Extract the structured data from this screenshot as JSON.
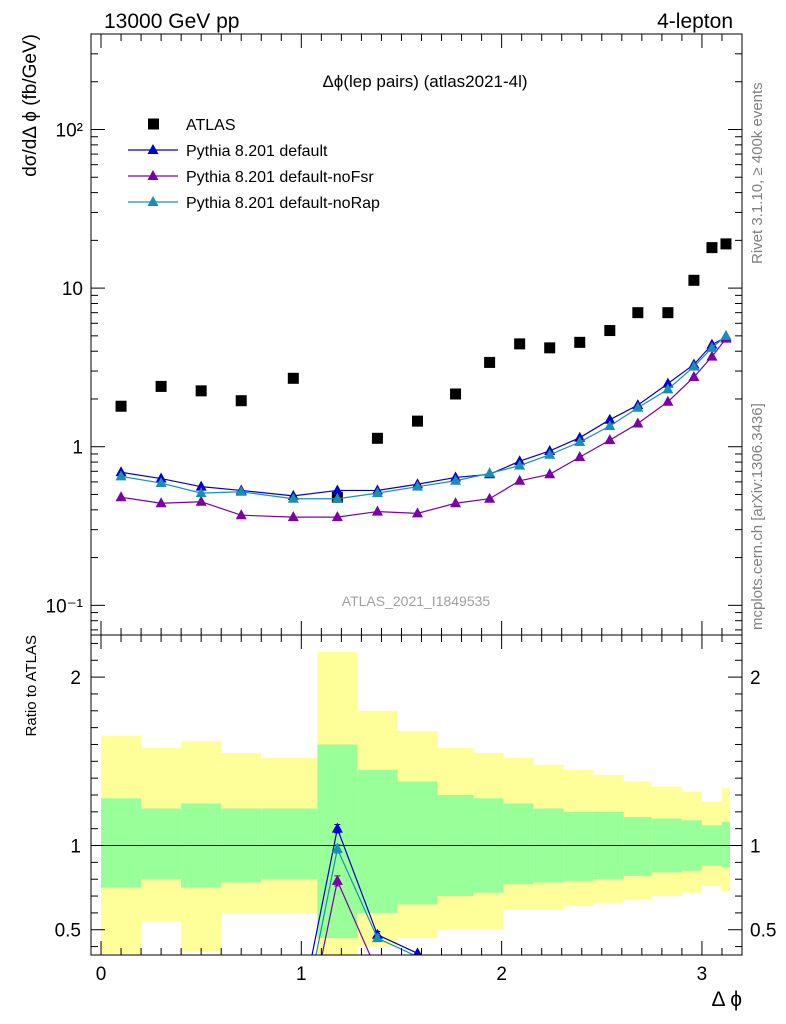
{
  "header": {
    "left": "13000 GeV pp",
    "right": "4-lepton"
  },
  "side_labels": {
    "top": "Rivet 3.1.10, ≥ 400k events",
    "bottom": "mcplots.cern.ch [arXiv:1306.3436]"
  },
  "chart_data": [
    {
      "type": "scatter",
      "title": "Δϕ(lep pairs) (atlas2021-4l)",
      "ylabel": "dσ/dΔ ϕ (fb/GeV)",
      "yscale": "log",
      "xlim": [
        -0.05,
        3.2
      ],
      "ylim": [
        0.065,
        400
      ],
      "watermark": "ATLAS_2021_I1849535",
      "y_ticks": [
        {
          "value": 0.1,
          "label": "10⁻¹"
        },
        {
          "value": 1,
          "label": "1"
        },
        {
          "value": 10,
          "label": "10"
        },
        {
          "value": 100,
          "label": "10²"
        }
      ],
      "legend_position": "top-left",
      "series": [
        {
          "name": "ATLAS",
          "color": "#000000",
          "marker": "square",
          "x": [
            0.1,
            0.3,
            0.5,
            0.7,
            0.96,
            1.18,
            1.38,
            1.58,
            1.77,
            1.94,
            2.09,
            2.24,
            2.39,
            2.54,
            2.68,
            2.83,
            2.96,
            3.05,
            3.12
          ],
          "y": [
            1.8,
            2.4,
            2.25,
            1.95,
            2.7,
            0.48,
            1.13,
            1.45,
            2.15,
            3.4,
            4.45,
            4.2,
            4.55,
            5.4,
            7.0,
            7.0,
            11.2,
            18.0,
            19.0
          ]
        },
        {
          "name": "Pythia 8.201 default",
          "color": "#0000cc",
          "marker": "triangle",
          "x": [
            0.1,
            0.3,
            0.5,
            0.7,
            0.96,
            1.18,
            1.38,
            1.58,
            1.77,
            1.94,
            2.09,
            2.24,
            2.39,
            2.54,
            2.68,
            2.83,
            2.96,
            3.05,
            3.12
          ],
          "y": [
            0.69,
            0.63,
            0.56,
            0.53,
            0.49,
            0.53,
            0.53,
            0.58,
            0.64,
            0.67,
            0.81,
            0.94,
            1.14,
            1.48,
            1.83,
            2.5,
            3.3,
            4.4,
            4.9
          ]
        },
        {
          "name": "Pythia 8.201 default-noFsr",
          "color": "#7a00a8",
          "marker": "triangle",
          "x": [
            0.1,
            0.3,
            0.5,
            0.7,
            0.96,
            1.18,
            1.38,
            1.58,
            1.77,
            1.94,
            2.09,
            2.24,
            2.39,
            2.54,
            2.68,
            2.83,
            2.96,
            3.05,
            3.12
          ],
          "y": [
            0.48,
            0.44,
            0.45,
            0.37,
            0.36,
            0.36,
            0.39,
            0.38,
            0.44,
            0.47,
            0.61,
            0.67,
            0.86,
            1.1,
            1.4,
            1.92,
            2.75,
            3.7,
            4.8
          ]
        },
        {
          "name": "Pythia 8.201 default-noRap",
          "color": "#1a8fb0",
          "marker": "triangle",
          "x": [
            0.1,
            0.3,
            0.5,
            0.7,
            0.96,
            1.18,
            1.38,
            1.58,
            1.77,
            1.94,
            2.09,
            2.24,
            2.39,
            2.54,
            2.68,
            2.83,
            2.96,
            3.05,
            3.12
          ],
          "y": [
            0.65,
            0.59,
            0.51,
            0.52,
            0.47,
            0.47,
            0.51,
            0.56,
            0.61,
            0.68,
            0.76,
            0.89,
            1.07,
            1.35,
            1.76,
            2.3,
            3.2,
            4.2,
            5.0
          ]
        }
      ]
    },
    {
      "type": "line",
      "ylabel": "Ratio to ATLAS",
      "xlabel": "Δ ϕ",
      "xlim": [
        -0.05,
        3.2
      ],
      "ylim": [
        0.35,
        2.25
      ],
      "x_ticks": [
        0,
        1,
        2,
        3
      ],
      "y_ticks": [
        0.5,
        1,
        2
      ],
      "reference_line": 1,
      "bands": {
        "edges": [
          0,
          0.2,
          0.4,
          0.6,
          0.8,
          1.08,
          1.28,
          1.48,
          1.68,
          1.86,
          2.01,
          2.16,
          2.31,
          2.46,
          2.61,
          2.75,
          2.9,
          3.0,
          3.1,
          3.14
        ],
        "stat_color": "#99ff99",
        "syst_color": "#ffff99",
        "stat_low": [
          0.75,
          0.8,
          0.75,
          0.78,
          0.8,
          0.45,
          0.6,
          0.65,
          0.7,
          0.72,
          0.77,
          0.78,
          0.79,
          0.8,
          0.82,
          0.84,
          0.85,
          0.88,
          0.87
        ],
        "stat_high": [
          1.28,
          1.22,
          1.25,
          1.22,
          1.22,
          1.6,
          1.45,
          1.38,
          1.3,
          1.28,
          1.25,
          1.22,
          1.2,
          1.2,
          1.17,
          1.16,
          1.15,
          1.12,
          1.14
        ],
        "syst_low": [
          0.36,
          0.55,
          0.37,
          0.6,
          0.6,
          0.35,
          0.4,
          0.45,
          0.5,
          0.5,
          0.62,
          0.62,
          0.64,
          0.66,
          0.68,
          0.7,
          0.72,
          0.76,
          0.73
        ],
        "syst_high": [
          1.65,
          1.58,
          1.62,
          1.55,
          1.52,
          2.15,
          1.8,
          1.68,
          1.58,
          1.55,
          1.52,
          1.48,
          1.45,
          1.42,
          1.38,
          1.35,
          1.32,
          1.26,
          1.34
        ]
      },
      "series": [
        {
          "name": "Pythia 8.201 default",
          "color": "#0000cc",
          "x": [
            1.05,
            1.18,
            1.38,
            1.58
          ],
          "y": [
            0.33,
            1.1,
            0.47,
            0.36
          ],
          "err": [
            0,
            0.025,
            0.02,
            0
          ]
        },
        {
          "name": "Pythia 8.201 default-noFsr",
          "color": "#7a00a8",
          "x": [
            1.1,
            1.18,
            1.35
          ],
          "y": [
            0.33,
            0.79,
            0.33
          ],
          "err": [
            0,
            0.03,
            0
          ]
        },
        {
          "name": "Pythia 8.201 default-noRap",
          "color": "#1a8fb0",
          "x": [
            1.07,
            1.18,
            1.38,
            1.58
          ],
          "y": [
            0.33,
            0.98,
            0.45,
            0.34
          ],
          "err": [
            0,
            0.025,
            0.02,
            0
          ]
        }
      ]
    }
  ]
}
